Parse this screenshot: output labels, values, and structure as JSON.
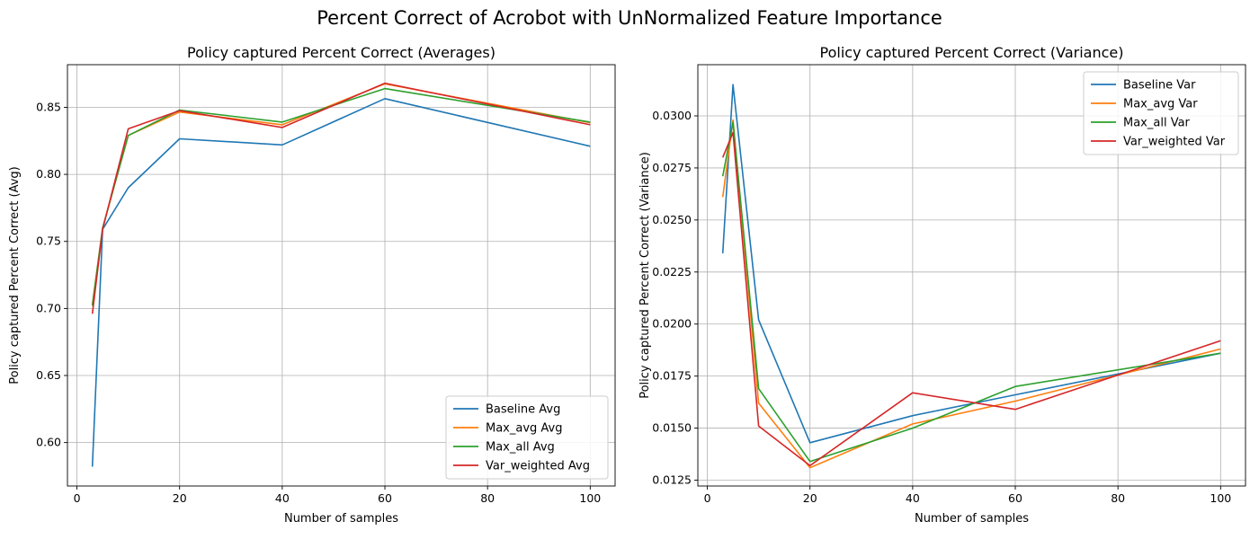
{
  "suptitle": "Percent Correct of Acrobot with UnNormalized Feature Importance",
  "colors": {
    "blue": "#1f77b4",
    "orange": "#ff7f0e",
    "green": "#2ca02c",
    "red": "#d62728"
  },
  "chart_data": [
    {
      "type": "line",
      "title": "Policy captured Percent Correct (Averages)",
      "xlabel": "Number of samples",
      "ylabel": "Policy captured Percent Correct (Avg)",
      "x": [
        3,
        5,
        10,
        20,
        40,
        60,
        100
      ],
      "xlim": [
        -1.85,
        104.85
      ],
      "ylim": [
        0.5676,
        0.8818
      ],
      "xticks": [
        0,
        20,
        40,
        60,
        80,
        100
      ],
      "yticks": [
        0.6,
        0.65,
        0.7,
        0.75,
        0.8,
        0.85
      ],
      "ytick_labels": [
        "0.60",
        "0.65",
        "0.70",
        "0.75",
        "0.80",
        "0.85"
      ],
      "grid": true,
      "legend_position": "lower-right",
      "series": [
        {
          "name": "Baseline Avg",
          "color": "#1f77b4",
          "values": [
            0.582,
            0.759,
            0.79,
            0.8265,
            0.822,
            0.8565,
            0.821
          ]
        },
        {
          "name": "Max_avg Avg",
          "color": "#ff7f0e",
          "values": [
            0.703,
            0.76,
            0.829,
            0.8465,
            0.837,
            0.8675,
            0.8385
          ]
        },
        {
          "name": "Max_all Avg",
          "color": "#2ca02c",
          "values": [
            0.702,
            0.76,
            0.829,
            0.848,
            0.839,
            0.864,
            0.839
          ]
        },
        {
          "name": "Var_weighted Avg",
          "color": "#d62728",
          "values": [
            0.696,
            0.759,
            0.834,
            0.8475,
            0.835,
            0.868,
            0.837
          ]
        }
      ]
    },
    {
      "type": "line",
      "title": "Policy captured Percent Correct (Variance)",
      "xlabel": "Number of samples",
      "ylabel": "Policy captured Percent Correct (Variance)",
      "x": [
        3,
        5,
        10,
        20,
        40,
        60,
        100
      ],
      "xlim": [
        -1.85,
        104.85
      ],
      "ylim": [
        0.01222,
        0.03246
      ],
      "xticks": [
        0,
        20,
        40,
        60,
        80,
        100
      ],
      "yticks": [
        0.0125,
        0.015,
        0.0175,
        0.02,
        0.0225,
        0.025,
        0.0275,
        0.03
      ],
      "ytick_labels": [
        "0.0125",
        "0.0150",
        "0.0175",
        "0.0200",
        "0.0225",
        "0.0250",
        "0.0275",
        "0.0300"
      ],
      "grid": true,
      "legend_position": "upper-right",
      "series": [
        {
          "name": "Baseline Var",
          "color": "#1f77b4",
          "values": [
            0.0234,
            0.0315,
            0.0202,
            0.0143,
            0.0156,
            0.0166,
            0.0186
          ]
        },
        {
          "name": "Max_avg Var",
          "color": "#ff7f0e",
          "values": [
            0.0261,
            0.0298,
            0.0162,
            0.0131,
            0.0152,
            0.0163,
            0.0188
          ]
        },
        {
          "name": "Max_all Var",
          "color": "#2ca02c",
          "values": [
            0.0271,
            0.0297,
            0.0169,
            0.0134,
            0.015,
            0.017,
            0.0186
          ]
        },
        {
          "name": "Var_weighted Var",
          "color": "#d62728",
          "values": [
            0.028,
            0.0292,
            0.0151,
            0.0132,
            0.0167,
            0.0159,
            0.0192
          ]
        }
      ]
    }
  ]
}
